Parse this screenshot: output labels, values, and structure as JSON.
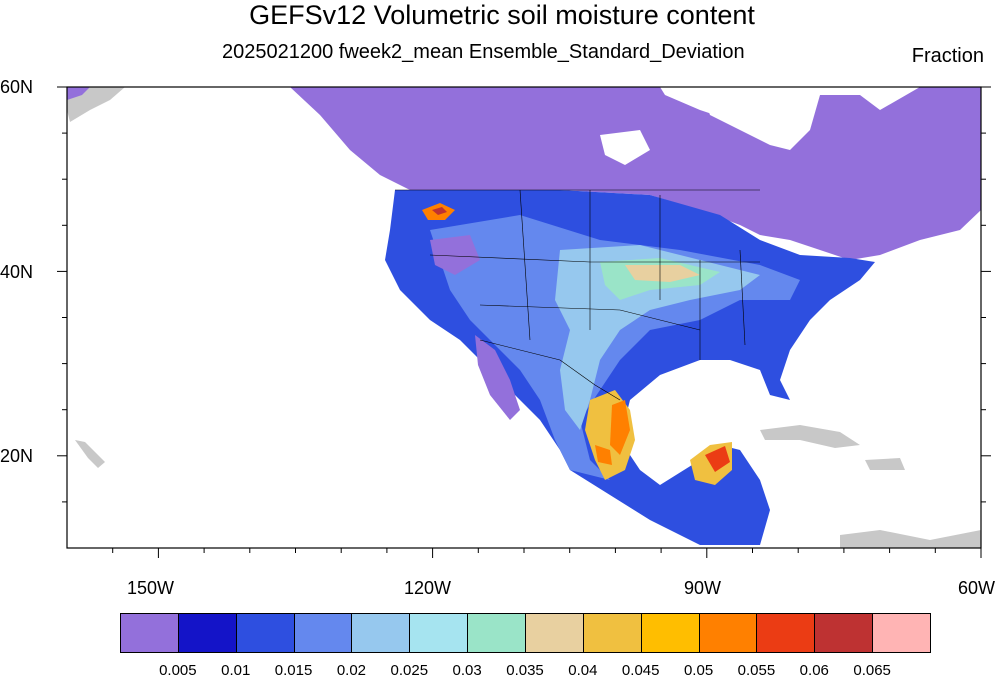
{
  "title": "GEFSv12 Volumetric soil moisture content",
  "subtitle": "2025021200 fweek2_mean Ensemble_Standard_Deviation",
  "units": "Fraction",
  "lat_labels": [
    "60N",
    "40N",
    "20N"
  ],
  "lon_labels": [
    "150W",
    "120W",
    "90W",
    "60W"
  ],
  "colorbar": {
    "labels": [
      "0.005",
      "0.01",
      "0.015",
      "0.02",
      "0.025",
      "0.03",
      "0.035",
      "0.04",
      "0.045",
      "0.05",
      "0.055",
      "0.06",
      "0.065"
    ],
    "colors": [
      "#9370DB",
      "#1414C8",
      "#2E4FE0",
      "#6488EE",
      "#96C8EE",
      "#A6E4F0",
      "#9AE4C8",
      "#E8D0A0",
      "#F0C040",
      "#FFBE00",
      "#FF8000",
      "#EB3C14",
      "#BE3232",
      "#FFB4B4"
    ]
  },
  "land_color": "#C8C8C8",
  "chart_data": {
    "type": "heatmap",
    "title": "GEFSv12 Volumetric soil moisture content",
    "subtitle": "2025021200 fweek2_mean Ensemble_Standard_Deviation",
    "units": "Fraction",
    "lon_range": [
      -160,
      -60
    ],
    "lat_range": [
      10,
      60
    ],
    "lon_ticks": [
      -150,
      -120,
      -90,
      -60
    ],
    "lat_ticks": [
      20,
      40,
      60
    ]
  }
}
